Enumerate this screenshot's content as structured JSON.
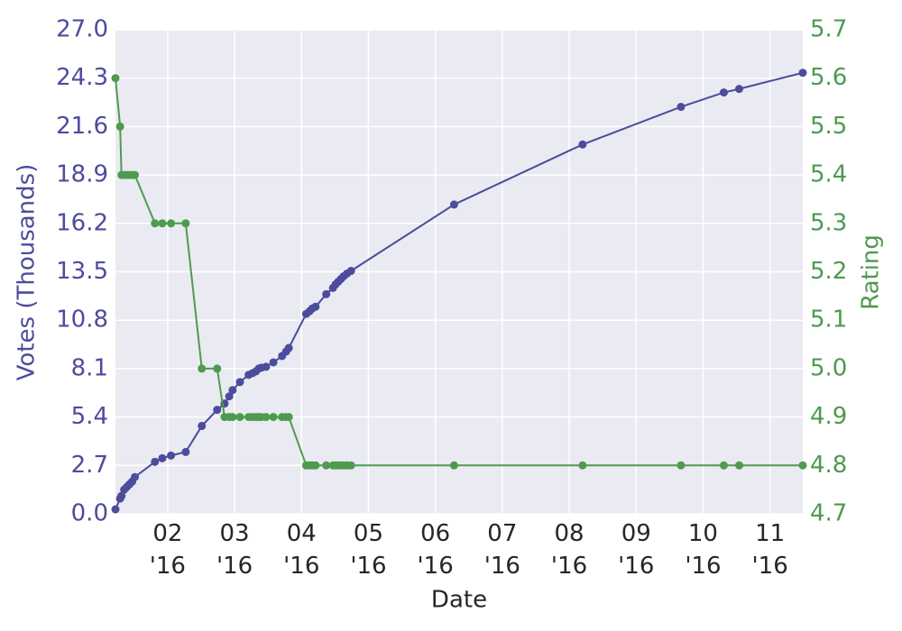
{
  "chart_data": {
    "type": "line",
    "x_label": "Date",
    "y_label": "Votes (Thousands)",
    "y2_label": "Rating",
    "x": [
      1.22,
      1.29,
      1.31,
      1.35,
      1.39,
      1.43,
      1.47,
      1.51,
      1.81,
      1.92,
      2.05,
      2.27,
      2.51,
      2.74,
      2.85,
      2.92,
      2.97,
      3.08,
      3.21,
      3.27,
      3.32,
      3.36,
      3.4,
      3.47,
      3.58,
      3.71,
      3.77,
      3.81,
      4.07,
      4.12,
      4.16,
      4.21,
      4.37,
      4.47,
      4.51,
      4.55,
      4.59,
      4.63,
      4.68,
      4.74,
      6.28,
      8.2,
      9.67,
      10.31,
      10.54,
      11.49
    ],
    "series": [
      {
        "name": "Votes (Thousands)",
        "color": "#4c4c9d",
        "axis": "y",
        "values": [
          0.25,
          0.85,
          1.0,
          1.35,
          1.5,
          1.65,
          1.8,
          2.05,
          2.9,
          3.1,
          3.25,
          3.45,
          4.9,
          5.8,
          6.15,
          6.55,
          6.9,
          7.35,
          7.75,
          7.85,
          7.95,
          8.1,
          8.15,
          8.2,
          8.45,
          8.8,
          9.05,
          9.25,
          11.15,
          11.3,
          11.45,
          11.55,
          12.25,
          12.6,
          12.8,
          12.95,
          13.1,
          13.25,
          13.4,
          13.55,
          17.25,
          20.6,
          22.7,
          23.5,
          23.7,
          24.6
        ]
      },
      {
        "name": "Rating",
        "color": "#4e9a4e",
        "axis": "y2",
        "values": [
          5.6,
          5.5,
          5.4,
          5.4,
          5.4,
          5.4,
          5.4,
          5.4,
          5.3,
          5.3,
          5.3,
          5.3,
          5.0,
          5.0,
          4.9,
          4.9,
          4.9,
          4.9,
          4.9,
          4.9,
          4.9,
          4.9,
          4.9,
          4.9,
          4.9,
          4.9,
          4.9,
          4.9,
          4.8,
          4.8,
          4.8,
          4.8,
          4.8,
          4.8,
          4.8,
          4.8,
          4.8,
          4.8,
          4.8,
          4.8,
          4.8,
          4.8,
          4.8,
          4.8,
          4.8,
          4.8
        ]
      }
    ],
    "xlim": [
      1.22,
      11.49
    ],
    "xticks": [
      {
        "value": 2,
        "label": "02\n'16"
      },
      {
        "value": 3,
        "label": "03\n'16"
      },
      {
        "value": 4,
        "label": "04\n'16"
      },
      {
        "value": 5,
        "label": "05\n'16"
      },
      {
        "value": 6,
        "label": "06\n'16"
      },
      {
        "value": 7,
        "label": "07\n'16"
      },
      {
        "value": 8,
        "label": "08\n'16"
      },
      {
        "value": 9,
        "label": "09\n'16"
      },
      {
        "value": 10,
        "label": "10\n'16"
      },
      {
        "value": 11,
        "label": "11\n'16"
      }
    ],
    "ylim": [
      0,
      27
    ],
    "yticks": [
      {
        "value": 0,
        "label": "0.0"
      },
      2.7,
      5.4,
      8.1,
      10.8,
      13.5,
      16.2,
      18.9,
      21.6,
      24.3,
      {
        "value": 27,
        "label": "27.0"
      }
    ],
    "y2lim": [
      4.7,
      5.7
    ],
    "y2ticks": [
      4.7,
      4.8,
      4.9,
      {
        "value": 5.0,
        "label": "5.0"
      },
      5.1,
      5.2,
      5.3,
      5.4,
      5.5,
      5.6,
      5.7
    ],
    "grid": true,
    "background": "#eaeaf2"
  }
}
